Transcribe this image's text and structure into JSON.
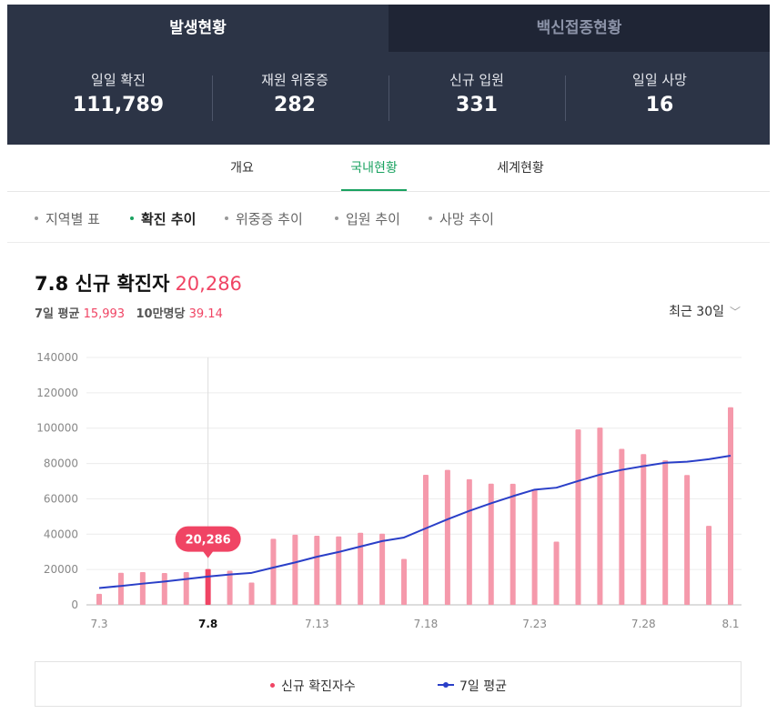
{
  "header": {
    "tabs": [
      {
        "label": "발생현황"
      },
      {
        "label": "백신접종현황"
      }
    ],
    "stats": [
      {
        "label": "일일 확진",
        "value": "111,789"
      },
      {
        "label": "재원 위중증",
        "value": "282"
      },
      {
        "label": "신규 입원",
        "value": "331"
      },
      {
        "label": "일일 사망",
        "value": "16"
      }
    ]
  },
  "subnav": {
    "tabs": [
      {
        "label": "개요"
      },
      {
        "label": "국내현황"
      },
      {
        "label": "세계현황"
      }
    ]
  },
  "filters": [
    {
      "label": "지역별 표"
    },
    {
      "label": "확진 추이"
    },
    {
      "label": "위중증 추이"
    },
    {
      "label": "입원 추이"
    },
    {
      "label": "사망 추이"
    }
  ],
  "summary": {
    "title": "7.8 신규 확진자",
    "title_value": "20,286",
    "avg_label": "7일 평균",
    "avg_value": "15,993",
    "per_label": "10만명당",
    "per_value": "39.14",
    "range_label": "최근 30일"
  },
  "chart_data": {
    "type": "bar",
    "categories": [
      "7.3",
      "7.4",
      "7.5",
      "7.6",
      "7.7",
      "7.8",
      "7.9",
      "7.10",
      "7.11",
      "7.12",
      "7.13",
      "7.14",
      "7.15",
      "7.16",
      "7.17",
      "7.18",
      "7.19",
      "7.20",
      "7.21",
      "7.22",
      "7.23",
      "7.24",
      "7.25",
      "7.26",
      "7.27",
      "7.28",
      "7.29",
      "7.30",
      "7.31",
      "8.1"
    ],
    "x_tick_labels": [
      "7.3",
      "7.8",
      "7.13",
      "7.18",
      "7.23",
      "7.28",
      "8.1"
    ],
    "x_tick_index": [
      0,
      5,
      10,
      15,
      20,
      25,
      29
    ],
    "highlight_index": 5,
    "highlight_label": "20,286",
    "series": [
      {
        "name": "신규 확진자수",
        "type": "bar",
        "color": "#f599ab",
        "highlight_color": "#f04464",
        "values": [
          6254,
          18147,
          18511,
          18000,
          18500,
          20286,
          19300,
          12600,
          37400,
          39700,
          39100,
          38700,
          40800,
          40300,
          26000,
          73600,
          76400,
          71100,
          68600,
          68500,
          65400,
          35800,
          99300,
          100300,
          88300,
          85300,
          81800,
          73500,
          44700,
          111789
        ]
      },
      {
        "name": "7일 평균",
        "type": "line",
        "color": "#2a3fc8",
        "values": [
          9500,
          10700,
          12000,
          13200,
          14600,
          15993,
          17200,
          18100,
          21100,
          24000,
          27200,
          29900,
          33000,
          36100,
          38100,
          43300,
          48400,
          53200,
          57500,
          61500,
          65200,
          66300,
          70100,
          73700,
          76400,
          78500,
          80400,
          81000,
          82400,
          84400
        ]
      }
    ],
    "ylim": [
      0,
      140000
    ],
    "yticks": [
      0,
      20000,
      40000,
      60000,
      80000,
      100000,
      120000,
      140000
    ],
    "grid": true,
    "legend": "bottom"
  },
  "colors": {
    "header_bg": "#2c3446",
    "accent_green": "#1aa260",
    "accent_pink": "#f04464",
    "bar": "#f599ab",
    "line": "#2a3fc8"
  }
}
